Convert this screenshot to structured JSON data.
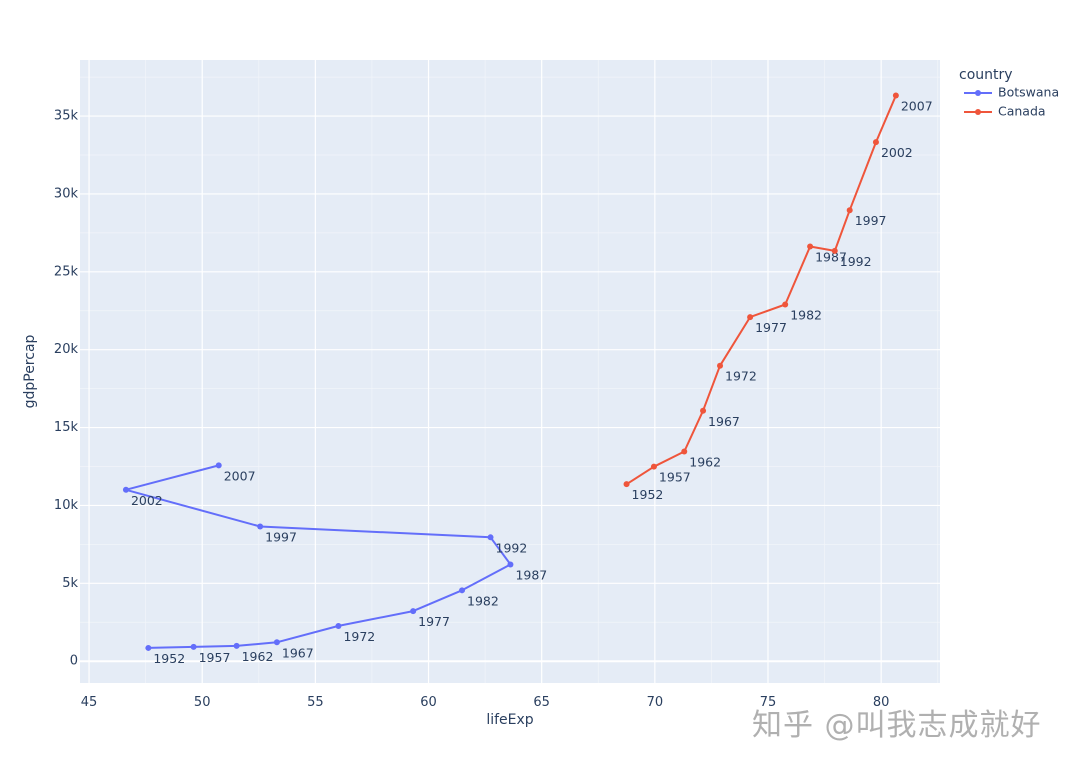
{
  "chart_data": {
    "type": "line",
    "xlabel": "lifeExp",
    "ylabel": "gdpPercap",
    "xlim": [
      44.6,
      82.6
    ],
    "ylim": [
      -1400,
      38600
    ],
    "xticks": [
      45,
      50,
      55,
      60,
      65,
      70,
      75,
      80
    ],
    "yticks": [
      0,
      5000,
      10000,
      15000,
      20000,
      25000,
      30000,
      35000
    ],
    "ytick_labels": [
      "0",
      "5k",
      "10k",
      "15k",
      "20k",
      "25k",
      "30k",
      "35k"
    ],
    "grid": true,
    "legend": {
      "title": "country",
      "placement": "top-right"
    },
    "series": [
      {
        "name": "Botswana",
        "color": "#636efa",
        "points": [
          {
            "label": "1952",
            "x": 47.62,
            "y": 851
          },
          {
            "label": "1957",
            "x": 49.62,
            "y": 918
          },
          {
            "label": "1962",
            "x": 51.52,
            "y": 984
          },
          {
            "label": "1967",
            "x": 53.3,
            "y": 1215
          },
          {
            "label": "1972",
            "x": 56.02,
            "y": 2263
          },
          {
            "label": "1977",
            "x": 59.32,
            "y": 3215
          },
          {
            "label": "1982",
            "x": 61.48,
            "y": 4551
          },
          {
            "label": "1987",
            "x": 63.62,
            "y": 6206
          },
          {
            "label": "1992",
            "x": 62.74,
            "y": 7954
          },
          {
            "label": "1997",
            "x": 52.56,
            "y": 8647
          },
          {
            "label": "2002",
            "x": 46.63,
            "y": 11004
          },
          {
            "label": "2007",
            "x": 50.73,
            "y": 12570
          }
        ]
      },
      {
        "name": "Canada",
        "color": "#ef553b",
        "points": [
          {
            "label": "1952",
            "x": 68.75,
            "y": 11367
          },
          {
            "label": "1957",
            "x": 69.96,
            "y": 12490
          },
          {
            "label": "1962",
            "x": 71.3,
            "y": 13462
          },
          {
            "label": "1967",
            "x": 72.13,
            "y": 16077
          },
          {
            "label": "1972",
            "x": 72.88,
            "y": 18971
          },
          {
            "label": "1977",
            "x": 74.21,
            "y": 22091
          },
          {
            "label": "1982",
            "x": 75.76,
            "y": 22899
          },
          {
            "label": "1987",
            "x": 76.86,
            "y": 26627
          },
          {
            "label": "1992",
            "x": 77.95,
            "y": 26343
          },
          {
            "label": "1997",
            "x": 78.61,
            "y": 28955
          },
          {
            "label": "2002",
            "x": 79.77,
            "y": 33329
          },
          {
            "label": "2007",
            "x": 80.65,
            "y": 36319
          }
        ]
      }
    ]
  },
  "watermark": "知乎 @叫我志成就好"
}
